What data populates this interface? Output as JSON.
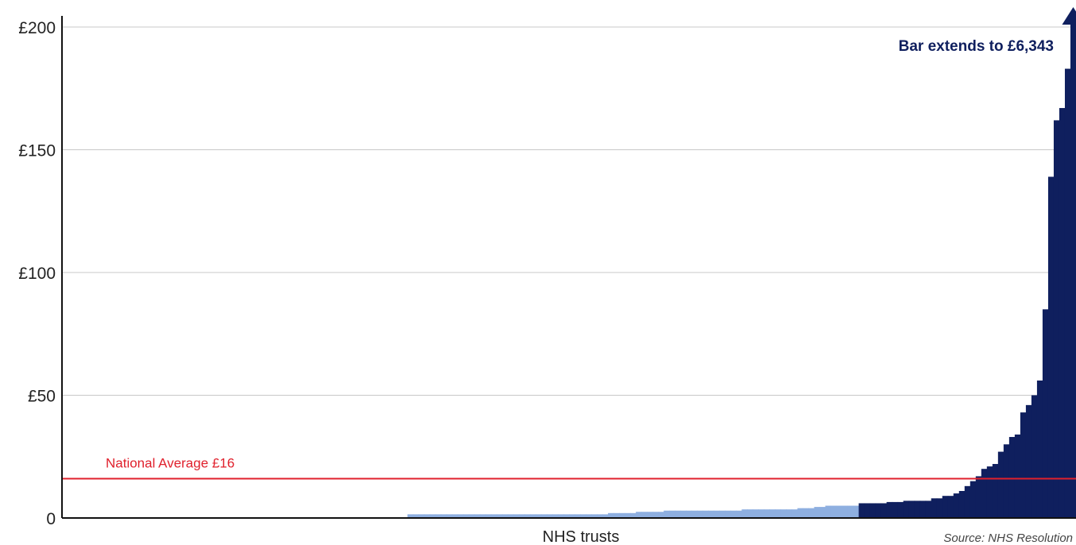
{
  "chart_data": {
    "type": "bar",
    "title": "",
    "xlabel": "NHS trusts",
    "ylabel": "",
    "ylim": [
      0,
      200
    ],
    "y_ticks": [
      {
        "value": 0,
        "label": "0"
      },
      {
        "value": 50,
        "label": "£50"
      },
      {
        "value": 100,
        "label": "£100"
      },
      {
        "value": 150,
        "label": "£150"
      },
      {
        "value": 200,
        "label": "£200"
      }
    ],
    "grid": true,
    "reference_line": {
      "label": "National Average £16",
      "value": 16,
      "color": "#e0202c"
    },
    "annotation": {
      "text": "Bar extends to £6,343"
    },
    "source": "Source: NHS Resolution",
    "colors": {
      "light": "#8eafe0",
      "dark": "#0f1f5e",
      "grid": "#c8c8c8",
      "axis": "#111111"
    },
    "bars": {
      "zero_count": 62,
      "light_values": [
        1.5,
        1.5,
        1.5,
        1.5,
        1.5,
        1.5,
        1.5,
        1.5,
        1.5,
        1.5,
        1.5,
        1.5,
        1.5,
        1.5,
        1.5,
        1.5,
        1.5,
        1.5,
        1.5,
        1.5,
        1.5,
        1.5,
        1.5,
        1.5,
        1.5,
        1.5,
        1.5,
        1.5,
        1.5,
        1.5,
        1.5,
        1.5,
        1.5,
        1.5,
        1.5,
        1.5,
        2,
        2,
        2,
        2,
        2,
        2.5,
        2.5,
        2.5,
        2.5,
        2.5,
        3,
        3,
        3,
        3,
        3,
        3,
        3,
        3,
        3,
        3,
        3,
        3,
        3,
        3,
        3.5,
        3.5,
        3.5,
        3.5,
        3.5,
        3.5,
        3.5,
        3.5,
        3.5,
        3.5,
        4,
        4,
        4,
        4.5,
        4.5,
        5,
        5,
        5,
        5,
        5,
        5
      ],
      "dark_values": [
        6,
        6,
        6,
        6,
        6,
        6.5,
        6.5,
        6.5,
        7,
        7,
        7,
        7,
        7,
        8,
        8,
        9,
        9,
        10,
        11,
        13,
        15,
        17,
        20,
        21,
        22,
        27,
        30,
        33,
        34,
        43,
        46,
        50,
        56,
        85,
        139,
        162,
        167,
        183,
        6343
      ],
      "capped_value": 6343
    }
  }
}
